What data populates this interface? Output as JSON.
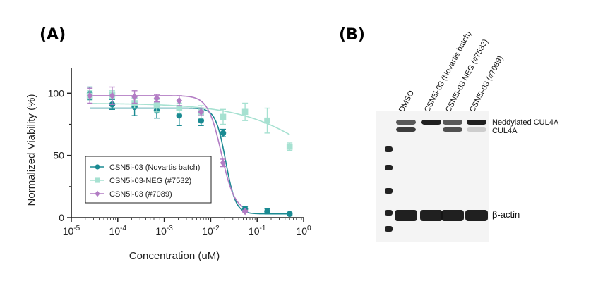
{
  "panels": {
    "a_label": "(A)",
    "b_label": "(B)"
  },
  "chart_data": {
    "type": "scatter",
    "xlabel": "Concentration (uM)",
    "ylabel": "Normalized Viability (%)",
    "xscale": "log",
    "xlim": [
      1e-05,
      1
    ],
    "ylim": [
      0,
      120
    ],
    "x_tick_labels": [
      {
        "base": "10",
        "exp": "-5"
      },
      {
        "base": "10",
        "exp": "-4"
      },
      {
        "base": "10",
        "exp": "-3"
      },
      {
        "base": "10",
        "exp": "-2"
      },
      {
        "base": "10",
        "exp": "-1"
      },
      {
        "base": "10",
        "exp": "0"
      }
    ],
    "x_ticks": [
      1e-05,
      0.0001,
      0.001,
      0.01,
      0.1,
      1
    ],
    "y_tick_labels": [
      "0",
      "50",
      "100"
    ],
    "y_ticks": [
      0,
      50,
      100
    ],
    "legend_position": "bottom-left",
    "series": [
      {
        "name": "CSN5i-03 (Novartis batch)",
        "color": "#1a8a92",
        "marker": "circle",
        "x": [
          2.5e-05,
          7.6e-05,
          0.00023,
          0.00069,
          0.0021,
          0.0062,
          0.0185,
          0.055,
          0.165,
          0.5
        ],
        "y": [
          100,
          91,
          89,
          86,
          82,
          78,
          68,
          7,
          5,
          3
        ],
        "err": [
          5,
          4,
          7,
          6,
          8,
          4,
          3,
          2,
          2,
          1
        ],
        "fit": {
          "top": 88,
          "bottom": 3,
          "ec50": 0.021,
          "hill": 4
        }
      },
      {
        "name": "CSN5i-03-NEG (#7532)",
        "color": "#a6e1d1",
        "marker": "square",
        "x": [
          2.5e-05,
          7.6e-05,
          0.00023,
          0.00069,
          0.0021,
          0.0062,
          0.0185,
          0.055,
          0.165,
          0.5
        ],
        "y": [
          98,
          99,
          92,
          90,
          88,
          85,
          81,
          85,
          78,
          57
        ],
        "err": [
          4,
          3,
          4,
          5,
          4,
          5,
          6,
          7,
          10,
          3
        ],
        "fit": {
          "top": 92,
          "bottom": 0,
          "ec50": 3.5,
          "hill": 0.5
        }
      },
      {
        "name": "CSN5i-03 (#7089)",
        "color": "#b27cc4",
        "marker": "diamond",
        "x": [
          2.5e-05,
          7.6e-05,
          0.00023,
          0.00069,
          0.0021,
          0.0062,
          0.0185,
          0.055
        ],
        "y": [
          98,
          98,
          97,
          96,
          94,
          85,
          44,
          5
        ],
        "err": [
          6,
          7,
          5,
          3,
          4,
          3,
          3,
          1
        ],
        "fit": {
          "top": 98,
          "bottom": 5,
          "ec50": 0.017,
          "hill": 3
        }
      }
    ]
  },
  "blot": {
    "lanes": [
      "DMSO",
      "CSN5i-03 (Novartis batch)",
      "CSN5i-03 NEG (#7532)",
      "CSN5i-03 (#7089)"
    ],
    "band_labels": [
      "Neddylated CUL4A",
      "CUL4A",
      "β-actin"
    ],
    "neddylated_intensity": [
      0.7,
      1.0,
      0.7,
      1.0
    ],
    "cul4a_intensity": [
      0.9,
      0.0,
      0.8,
      0.15
    ],
    "actin_intensity": [
      1.0,
      1.0,
      1.0,
      1.0
    ]
  }
}
